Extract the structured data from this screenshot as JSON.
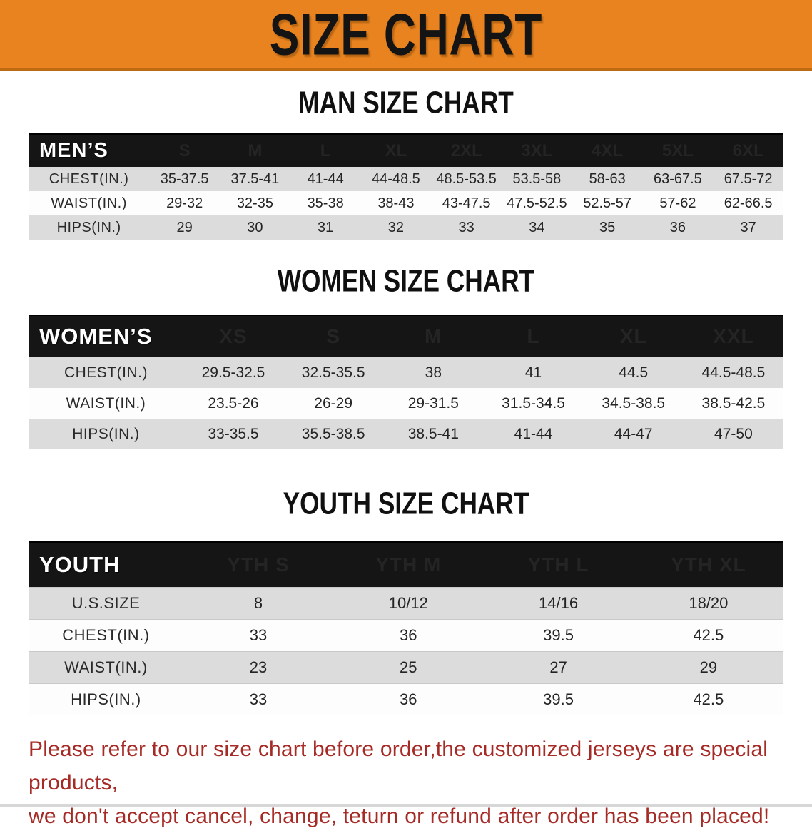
{
  "banner": {
    "title": "SIZE CHART"
  },
  "sections": [
    {
      "id": "men",
      "title": "MAN SIZE CHART",
      "corner_label": "MEN’S",
      "sizes": [
        "S",
        "M",
        "L",
        "XL",
        "2XL",
        "3XL",
        "4XL",
        "5XL",
        "6XL"
      ],
      "rows": [
        {
          "label": "CHEST(IN.)",
          "values": [
            "35-37.5",
            "37.5-41",
            "41-44",
            "44-48.5",
            "48.5-53.5",
            "53.5-58",
            "58-63",
            "63-67.5",
            "67.5-72"
          ]
        },
        {
          "label": "WAIST(IN.)",
          "values": [
            "29-32",
            "32-35",
            "35-38",
            "38-43",
            "43-47.5",
            "47.5-52.5",
            "52.5-57",
            "57-62",
            "62-66.5"
          ]
        },
        {
          "label": "HIPS(IN.)",
          "values": [
            "29",
            "30",
            "31",
            "32",
            "33",
            "34",
            "35",
            "36",
            "37"
          ]
        }
      ]
    },
    {
      "id": "women",
      "title": "WOMEN SIZE CHART",
      "corner_label": "WOMEN’S",
      "sizes": [
        "XS",
        "S",
        "M",
        "L",
        "XL",
        "XXL"
      ],
      "rows": [
        {
          "label": "CHEST(IN.)",
          "values": [
            "29.5-32.5",
            "32.5-35.5",
            "38",
            "41",
            "44.5",
            "44.5-48.5"
          ]
        },
        {
          "label": "WAIST(IN.)",
          "values": [
            "23.5-26",
            "26-29",
            "29-31.5",
            "31.5-34.5",
            "34.5-38.5",
            "38.5-42.5"
          ]
        },
        {
          "label": "HIPS(IN.)",
          "values": [
            "33-35.5",
            "35.5-38.5",
            "38.5-41",
            "41-44",
            "44-47",
            "47-50"
          ]
        }
      ]
    },
    {
      "id": "youth",
      "title": "YOUTH SIZE CHART",
      "corner_label": "YOUTH",
      "sizes": [
        "YTH S",
        "YTH M",
        "YTH L",
        "YTH XL"
      ],
      "rows": [
        {
          "label": "U.S.SIZE",
          "values": [
            "8",
            "10/12",
            "14/16",
            "18/20"
          ]
        },
        {
          "label": "CHEST(IN.)",
          "values": [
            "33",
            "36",
            "39.5",
            "42.5"
          ]
        },
        {
          "label": "WAIST(IN.)",
          "values": [
            "23",
            "25",
            "27",
            "29"
          ]
        },
        {
          "label": "HIPS(IN.)",
          "values": [
            "33",
            "36",
            "39.5",
            "42.5"
          ]
        }
      ]
    }
  ],
  "note": {
    "line1": "Please refer to our size chart before order,the customized jerseys are special products,",
    "line2": "we don't accept cancel, change, teturn or refund after order has been placed!"
  },
  "colors": {
    "banner_bg": "#E8831F",
    "banner_edge": "#BE6A10",
    "header_bg": "#151515",
    "row_shaded": "#DCDCDC",
    "row_plain": "#FDFDFD",
    "note_red": "#A62A25"
  }
}
